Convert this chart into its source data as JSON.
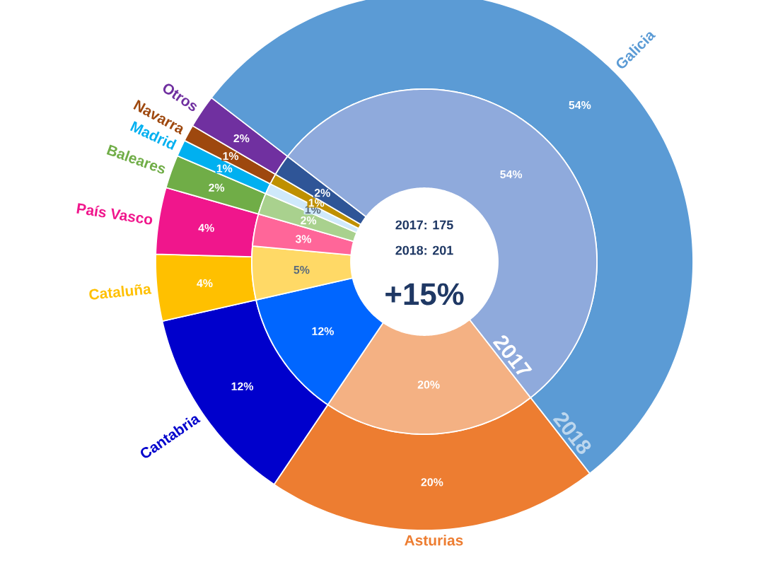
{
  "chart_data": {
    "type": "donut",
    "categories": [
      "Asturias",
      "Cantabria",
      "Cataluña",
      "País Vasco",
      "Baleares",
      "Madrid",
      "Navarra",
      "Otros",
      "Galicia"
    ],
    "series": [
      {
        "name": "2018",
        "values": [
          20,
          12,
          4,
          4,
          2,
          1,
          1,
          2,
          54
        ],
        "colors": [
          "#ed7d31",
          "#0000cc",
          "#ffc000",
          "#f0168c",
          "#70ad47",
          "#00b0f0",
          "#9e480e",
          "#7030a0",
          "#5b9bd5"
        ],
        "value_labels": [
          "20%",
          "12%",
          "4%",
          "4%",
          "2%",
          "1%",
          "1%",
          "2%",
          "54%"
        ]
      },
      {
        "name": "2017",
        "values": [
          20,
          12,
          5,
          3,
          2,
          1,
          1,
          2,
          54
        ],
        "colors": [
          "#f4b183",
          "#0066ff",
          "#ffd966",
          "#ff6699",
          "#a9d18e",
          "#cfe9fb",
          "#bf9000",
          "#2f5597",
          "#8faadc"
        ],
        "value_labels": [
          "20%",
          "12%",
          "5%",
          "3%",
          "2%",
          "1%",
          "1%",
          "2%",
          "54%"
        ]
      }
    ],
    "annotations": [
      "2017: 175",
      "2018: 201",
      "+15%"
    ]
  }
}
